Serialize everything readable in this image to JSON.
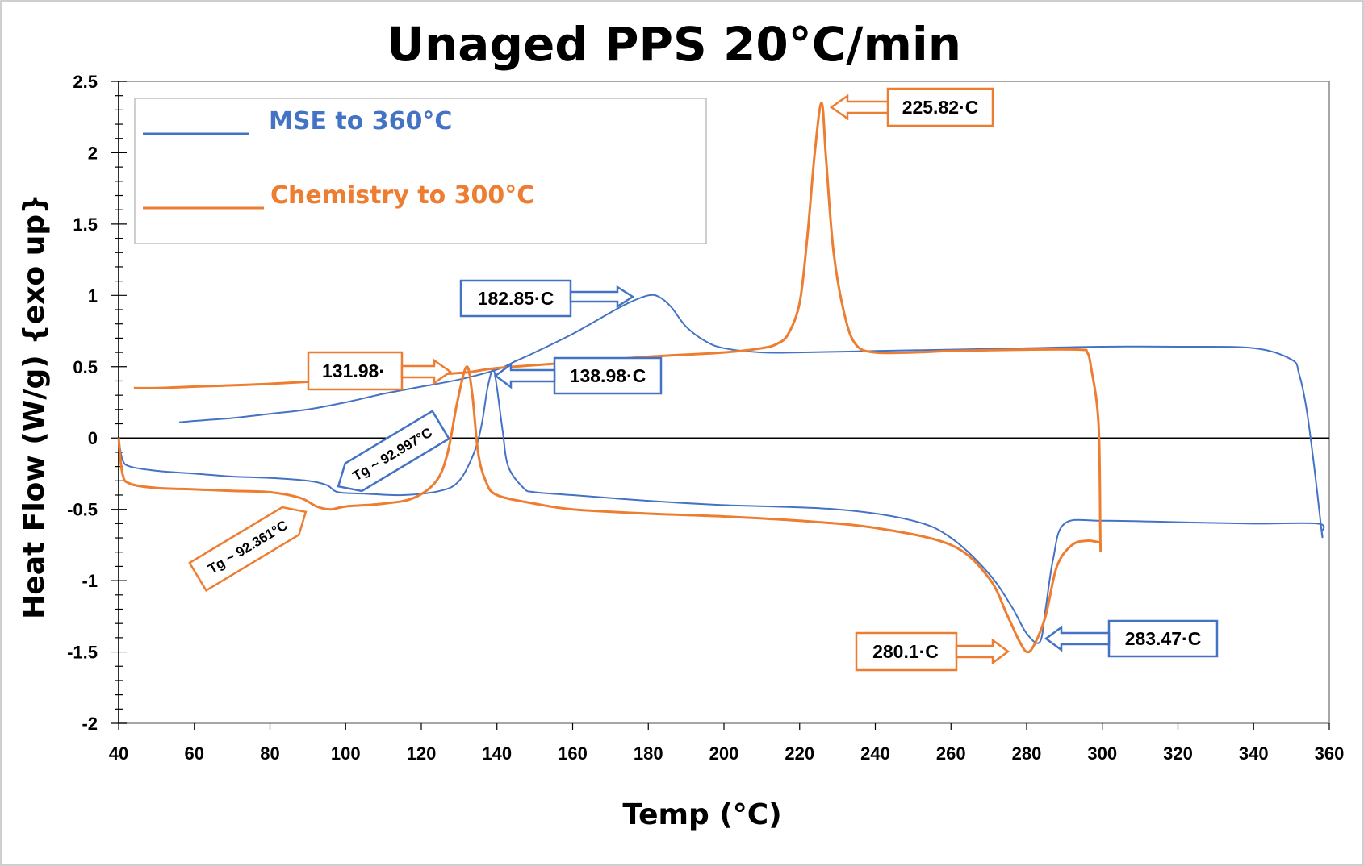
{
  "colors": {
    "mse": "#4472c4",
    "chemistry": "#ed7d31",
    "axis": "#000000",
    "frame": "#888888"
  },
  "chart_data": {
    "type": "line",
    "title": "Unaged PPS 20°C/min",
    "xlabel": "Temp (°C)",
    "ylabel": "Heat Flow (W/g) {exo up}",
    "xlim": [
      40,
      360
    ],
    "ylim": [
      -2,
      2.5
    ],
    "xticks": [
      "40",
      "60",
      "80",
      "100",
      "120",
      "140",
      "160",
      "180",
      "200",
      "220",
      "240",
      "260",
      "280",
      "300",
      "320",
      "340",
      "360"
    ],
    "yticks": [
      "2.5",
      "2",
      "1.5",
      "1",
      "0.5",
      "0",
      "-0.5",
      "-1",
      "-1.5",
      "-2"
    ],
    "grid": false,
    "legend_position": "top-left",
    "series": [
      {
        "name": "MSE to 360°C",
        "color": "#4472c4",
        "x": [
          40,
          41,
          43,
          50,
          60,
          70,
          80,
          90,
          95,
          98,
          105,
          115,
          125,
          130,
          134,
          136,
          137.5,
          138.98,
          140,
          141.5,
          143,
          147,
          150,
          160,
          180,
          200,
          230,
          250,
          260,
          270,
          276,
          280,
          283.47,
          285,
          287,
          290,
          300,
          320,
          340,
          357,
          358,
          358,
          356,
          354,
          352,
          350,
          340,
          320,
          300,
          280,
          260,
          240,
          220,
          210,
          200,
          195,
          190,
          186,
          182.85,
          180,
          175,
          170,
          160,
          150,
          145,
          140,
          130,
          120,
          110,
          100,
          90,
          80,
          70,
          60,
          56
        ],
        "y": [
          0,
          -0.15,
          -0.2,
          -0.23,
          -0.25,
          -0.27,
          -0.28,
          -0.3,
          -0.33,
          -0.38,
          -0.39,
          -0.4,
          -0.37,
          -0.3,
          -0.1,
          0.1,
          0.35,
          0.48,
          0.35,
          0.05,
          -0.2,
          -0.35,
          -0.38,
          -0.4,
          -0.44,
          -0.47,
          -0.5,
          -0.58,
          -0.7,
          -0.95,
          -1.18,
          -1.37,
          -1.43,
          -1.2,
          -0.85,
          -0.6,
          -0.58,
          -0.59,
          -0.6,
          -0.6,
          -0.66,
          -0.66,
          -0.2,
          0.2,
          0.45,
          0.55,
          0.63,
          0.64,
          0.64,
          0.63,
          0.62,
          0.61,
          0.6,
          0.6,
          0.63,
          0.68,
          0.78,
          0.92,
          0.99,
          1.0,
          0.95,
          0.88,
          0.73,
          0.6,
          0.54,
          0.48,
          0.41,
          0.36,
          0.31,
          0.25,
          0.2,
          0.17,
          0.14,
          0.12,
          0.11
        ]
      },
      {
        "name": "Chemistry to 300°C",
        "color": "#ed7d31",
        "x": [
          40,
          41,
          43,
          50,
          60,
          70,
          80,
          88,
          92.361,
          96,
          100,
          110,
          118,
          124,
          127,
          129.5,
          131.98,
          133.5,
          135,
          137,
          140,
          150,
          160,
          180,
          200,
          220,
          240,
          260,
          270,
          275,
          278,
          280.1,
          282,
          285,
          288,
          292,
          296,
          299,
          299.5,
          299.5,
          299,
          297,
          296,
          294,
          280,
          260,
          250,
          240,
          235,
          232,
          229,
          227,
          225.82,
          224,
          222,
          220,
          217,
          214,
          210,
          200,
          180,
          160,
          140,
          131.98,
          120,
          100,
          80,
          60,
          50,
          44
        ],
        "y": [
          0,
          -0.25,
          -0.32,
          -0.35,
          -0.36,
          -0.37,
          -0.38,
          -0.42,
          -0.48,
          -0.5,
          -0.48,
          -0.46,
          -0.42,
          -0.3,
          -0.1,
          0.25,
          0.5,
          0.3,
          -0.1,
          -0.3,
          -0.4,
          -0.46,
          -0.5,
          -0.53,
          -0.55,
          -0.58,
          -0.63,
          -0.75,
          -0.98,
          -1.25,
          -1.42,
          -1.5,
          -1.45,
          -1.25,
          -0.9,
          -0.75,
          -0.72,
          -0.73,
          -0.73,
          -0.73,
          0.1,
          0.5,
          0.6,
          0.62,
          0.62,
          0.61,
          0.6,
          0.6,
          0.65,
          0.85,
          1.3,
          1.95,
          2.35,
          2.0,
          1.4,
          0.95,
          0.73,
          0.66,
          0.63,
          0.6,
          0.57,
          0.53,
          0.49,
          0.46,
          0.44,
          0.41,
          0.38,
          0.36,
          0.35,
          0.35
        ]
      }
    ],
    "annotations": [
      {
        "text": "182.85·C",
        "series": "MSE to 360°C"
      },
      {
        "text": "138.98·C",
        "series": "MSE to 360°C"
      },
      {
        "text": "Tg ~ 92.997°C",
        "series": "MSE to 360°C"
      },
      {
        "text": "283.47·C",
        "series": "MSE to 360°C"
      },
      {
        "text": "225.82·C",
        "series": "Chemistry to 300°C"
      },
      {
        "text": "131.98·",
        "series": "Chemistry to 300°C"
      },
      {
        "text": "Tg ~ 92.361°C",
        "series": "Chemistry to 300°C"
      },
      {
        "text": "280.1·C",
        "series": "Chemistry to 300°C"
      }
    ]
  }
}
